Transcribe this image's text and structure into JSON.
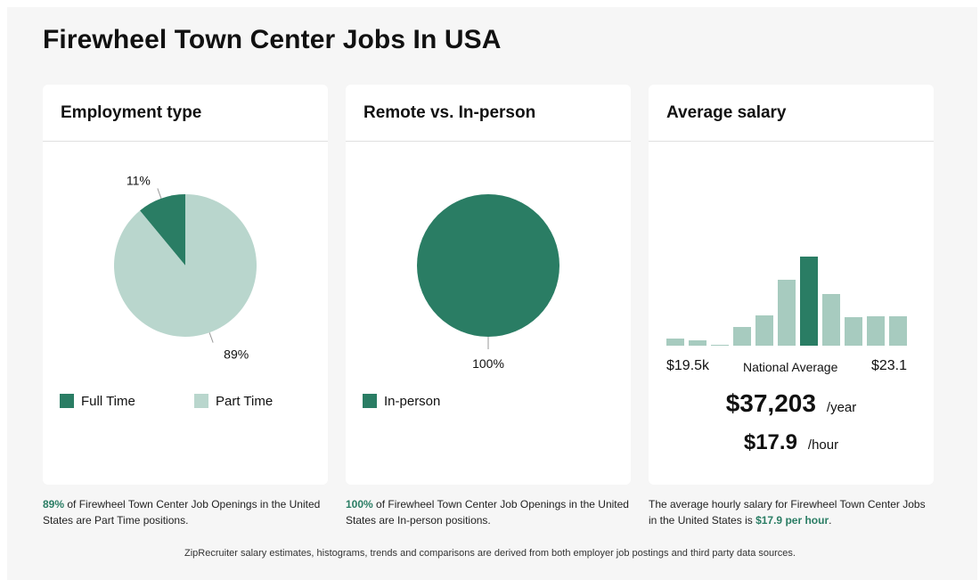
{
  "page_title": "Firewheel Town Center Jobs In USA",
  "colors": {
    "dark_green": "#2a7d64",
    "light_green": "#b9d6cd",
    "mid_green": "#a7cbbf"
  },
  "cards": {
    "employment": {
      "title": "Employment type",
      "legend": [
        {
          "label": "Full Time",
          "color": "#2a7d64"
        },
        {
          "label": "Part Time",
          "color": "#b9d6cd"
        }
      ],
      "caption_highlight": "89%",
      "caption_rest": " of Firewheel Town Center Job Openings in the United States are Part Time positions."
    },
    "remote": {
      "title": "Remote vs. In-person",
      "legend": [
        {
          "label": "In-person",
          "color": "#2a7d64"
        }
      ],
      "caption_highlight": "100%",
      "caption_rest": " of Firewheel Town Center Job Openings in the United States are In-person positions."
    },
    "salary": {
      "title": "Average salary",
      "tick_left": "$19.5k",
      "tick_center": "National Average",
      "tick_right": "$23.1",
      "yearly_value": "$37,203",
      "yearly_unit": "/year",
      "hourly_value": "$17.9",
      "hourly_unit": "/hour",
      "caption_start": "The average hourly salary for Firewheel Town Center Jobs in the United States is ",
      "caption_highlight": "$17.9 per hour",
      "caption_end": "."
    }
  },
  "footer_note": "ZipRecruiter salary estimates, histograms, trends and comparisons are derived from both employer job postings and third party data sources.",
  "chart_data": [
    {
      "type": "pie",
      "title": "Employment type",
      "slices": [
        {
          "name": "Full Time",
          "value": 11,
          "label": "11%",
          "color": "#2a7d64"
        },
        {
          "name": "Part Time",
          "value": 89,
          "label": "89%",
          "color": "#b9d6cd"
        }
      ]
    },
    {
      "type": "pie",
      "title": "Remote vs. In-person",
      "slices": [
        {
          "name": "In-person",
          "value": 100,
          "label": "100%",
          "color": "#2a7d64"
        }
      ]
    },
    {
      "type": "bar",
      "title": "Average salary",
      "values": [
        8,
        6,
        1,
        21,
        34,
        74,
        100,
        58,
        32,
        33,
        33
      ],
      "highlight_index": 6,
      "colors": {
        "normal": "#a7cbbf",
        "highlight": "#2a7d64"
      }
    }
  ]
}
